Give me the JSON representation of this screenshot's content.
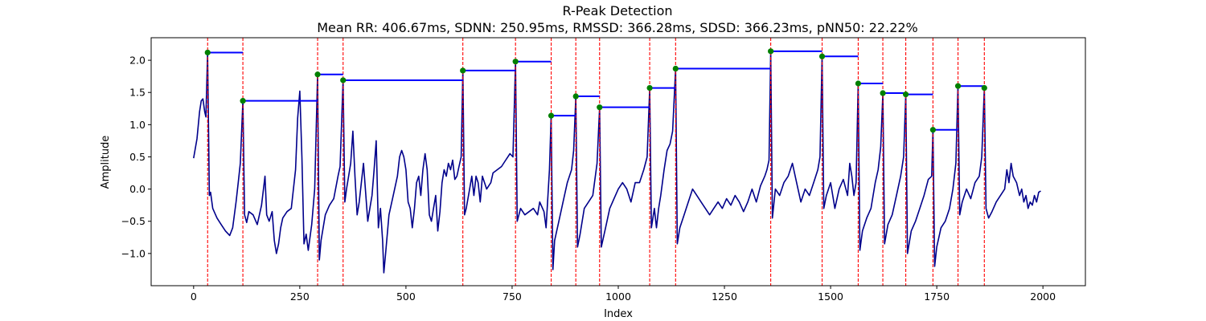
{
  "chart_data": {
    "type": "line",
    "title": "R-Peak Detection",
    "subtitle": "Mean RR: 406.67ms, SDNN: 250.95ms, RMSSD: 366.28ms, SDSD: 366.23ms, pNN50: 22.22%",
    "xlabel": "Index",
    "ylabel": "Amplitude",
    "xlim": [
      -100,
      2100
    ],
    "ylim": [
      -1.5,
      2.35
    ],
    "xticks": [
      0,
      250,
      500,
      750,
      1000,
      1250,
      1500,
      1750,
      2000
    ],
    "yticks": [
      -1.0,
      -0.5,
      0.0,
      0.5,
      1.0,
      1.5,
      2.0
    ],
    "xtick_labels": [
      "0",
      "250",
      "500",
      "750",
      "1000",
      "1250",
      "1500",
      "1750",
      "2000"
    ],
    "ytick_labels": [
      "−1.0",
      "−0.5",
      "0.0",
      "0.5",
      "1.0",
      "1.5",
      "2.0"
    ],
    "grid": false,
    "colors": {
      "signal": "#00008b",
      "peak_line": "#ff0000",
      "peak_marker": "#008000",
      "rr_interval": "#0000ff"
    },
    "signal_keypoints": [
      [
        0,
        0.48
      ],
      [
        8,
        0.78
      ],
      [
        14,
        1.2
      ],
      [
        18,
        1.37
      ],
      [
        22,
        1.4
      ],
      [
        26,
        1.2
      ],
      [
        29,
        1.12
      ],
      [
        33,
        2.12
      ],
      [
        37,
        -0.1
      ],
      [
        40,
        -0.05
      ],
      [
        45,
        -0.3
      ],
      [
        55,
        -0.45
      ],
      [
        65,
        -0.55
      ],
      [
        75,
        -0.65
      ],
      [
        85,
        -0.72
      ],
      [
        92,
        -0.6
      ],
      [
        100,
        -0.2
      ],
      [
        105,
        0.1
      ],
      [
        110,
        0.4
      ],
      [
        116,
        1.37
      ],
      [
        120,
        -0.4
      ],
      [
        125,
        -0.52
      ],
      [
        130,
        -0.35
      ],
      [
        140,
        -0.4
      ],
      [
        150,
        -0.55
      ],
      [
        160,
        -0.25
      ],
      [
        168,
        0.2
      ],
      [
        172,
        -0.4
      ],
      [
        178,
        -0.5
      ],
      [
        185,
        -0.35
      ],
      [
        190,
        -0.8
      ],
      [
        195,
        -1.0
      ],
      [
        200,
        -0.85
      ],
      [
        205,
        -0.6
      ],
      [
        210,
        -0.45
      ],
      [
        220,
        -0.35
      ],
      [
        230,
        -0.3
      ],
      [
        240,
        0.3
      ],
      [
        245,
        1.1
      ],
      [
        250,
        1.52
      ],
      [
        255,
        0.5
      ],
      [
        260,
        -0.85
      ],
      [
        265,
        -0.7
      ],
      [
        270,
        -0.95
      ],
      [
        278,
        -0.55
      ],
      [
        285,
        0.0
      ],
      [
        292,
        1.78
      ],
      [
        296,
        -1.1
      ],
      [
        300,
        -0.8
      ],
      [
        310,
        -0.4
      ],
      [
        320,
        -0.25
      ],
      [
        330,
        -0.15
      ],
      [
        340,
        0.2
      ],
      [
        345,
        0.35
      ],
      [
        352,
        1.69
      ],
      [
        356,
        -0.2
      ],
      [
        360,
        0.0
      ],
      [
        370,
        0.4
      ],
      [
        375,
        0.9
      ],
      [
        380,
        0.2
      ],
      [
        385,
        -0.4
      ],
      [
        390,
        -0.2
      ],
      [
        400,
        0.4
      ],
      [
        410,
        -0.5
      ],
      [
        415,
        -0.3
      ],
      [
        420,
        -0.1
      ],
      [
        425,
        0.3
      ],
      [
        430,
        0.75
      ],
      [
        435,
        -0.6
      ],
      [
        440,
        -0.3
      ],
      [
        445,
        -0.8
      ],
      [
        448,
        -1.3
      ],
      [
        452,
        -1.0
      ],
      [
        460,
        -0.4
      ],
      [
        470,
        -0.1
      ],
      [
        480,
        0.2
      ],
      [
        485,
        0.5
      ],
      [
        490,
        0.6
      ],
      [
        495,
        0.5
      ],
      [
        500,
        0.3
      ],
      [
        505,
        -0.2
      ],
      [
        510,
        -0.3
      ],
      [
        515,
        -0.6
      ],
      [
        520,
        -0.3
      ],
      [
        525,
        0.1
      ],
      [
        530,
        0.2
      ],
      [
        535,
        -0.1
      ],
      [
        540,
        0.3
      ],
      [
        545,
        0.55
      ],
      [
        550,
        0.3
      ],
      [
        555,
        -0.4
      ],
      [
        560,
        -0.5
      ],
      [
        565,
        -0.3
      ],
      [
        570,
        -0.1
      ],
      [
        575,
        -0.65
      ],
      [
        580,
        -0.35
      ],
      [
        585,
        0.1
      ],
      [
        590,
        0.3
      ],
      [
        595,
        0.2
      ],
      [
        600,
        0.4
      ],
      [
        605,
        0.3
      ],
      [
        610,
        0.45
      ],
      [
        615,
        0.15
      ],
      [
        620,
        0.2
      ],
      [
        625,
        0.35
      ],
      [
        630,
        0.5
      ],
      [
        634,
        1.84
      ],
      [
        638,
        -0.4
      ],
      [
        642,
        -0.3
      ],
      [
        650,
        0.0
      ],
      [
        655,
        0.2
      ],
      [
        660,
        -0.1
      ],
      [
        665,
        0.2
      ],
      [
        670,
        0.1
      ],
      [
        675,
        -0.2
      ],
      [
        680,
        0.2
      ],
      [
        690,
        0.0
      ],
      [
        700,
        0.1
      ],
      [
        705,
        0.25
      ],
      [
        715,
        0.3
      ],
      [
        725,
        0.35
      ],
      [
        735,
        0.45
      ],
      [
        745,
        0.55
      ],
      [
        752,
        0.5
      ],
      [
        758,
        1.98
      ],
      [
        762,
        -0.5
      ],
      [
        770,
        -0.3
      ],
      [
        780,
        -0.4
      ],
      [
        790,
        -0.35
      ],
      [
        800,
        -0.3
      ],
      [
        810,
        -0.4
      ],
      [
        815,
        -0.2
      ],
      [
        825,
        -0.35
      ],
      [
        830,
        -0.6
      ],
      [
        838,
        0.3
      ],
      [
        842,
        1.14
      ],
      [
        846,
        -1.25
      ],
      [
        850,
        -0.8
      ],
      [
        860,
        -0.5
      ],
      [
        870,
        -0.2
      ],
      [
        880,
        0.1
      ],
      [
        890,
        0.3
      ],
      [
        895,
        0.6
      ],
      [
        900,
        1.44
      ],
      [
        904,
        -0.9
      ],
      [
        910,
        -0.7
      ],
      [
        920,
        -0.3
      ],
      [
        930,
        -0.2
      ],
      [
        940,
        -0.1
      ],
      [
        950,
        0.4
      ],
      [
        956,
        1.27
      ],
      [
        960,
        -0.9
      ],
      [
        970,
        -0.6
      ],
      [
        980,
        -0.3
      ],
      [
        990,
        -0.15
      ],
      [
        1000,
        0.0
      ],
      [
        1010,
        0.1
      ],
      [
        1020,
        0.0
      ],
      [
        1030,
        -0.2
      ],
      [
        1040,
        0.1
      ],
      [
        1050,
        0.1
      ],
      [
        1060,
        0.3
      ],
      [
        1068,
        0.5
      ],
      [
        1074,
        1.57
      ],
      [
        1078,
        -0.6
      ],
      [
        1085,
        -0.3
      ],
      [
        1090,
        -0.6
      ],
      [
        1095,
        -0.3
      ],
      [
        1100,
        -0.1
      ],
      [
        1108,
        0.3
      ],
      [
        1115,
        0.6
      ],
      [
        1122,
        0.7
      ],
      [
        1128,
        0.9
      ],
      [
        1135,
        1.87
      ],
      [
        1139,
        -0.85
      ],
      [
        1145,
        -0.6
      ],
      [
        1155,
        -0.4
      ],
      [
        1165,
        -0.2
      ],
      [
        1175,
        0.0
      ],
      [
        1185,
        -0.1
      ],
      [
        1195,
        -0.2
      ],
      [
        1205,
        -0.3
      ],
      [
        1215,
        -0.4
      ],
      [
        1225,
        -0.3
      ],
      [
        1235,
        -0.2
      ],
      [
        1245,
        -0.3
      ],
      [
        1255,
        -0.15
      ],
      [
        1265,
        -0.25
      ],
      [
        1275,
        -0.1
      ],
      [
        1285,
        -0.2
      ],
      [
        1295,
        -0.35
      ],
      [
        1305,
        -0.2
      ],
      [
        1315,
        0.0
      ],
      [
        1325,
        -0.2
      ],
      [
        1335,
        0.05
      ],
      [
        1345,
        0.2
      ],
      [
        1350,
        0.3
      ],
      [
        1355,
        0.45
      ],
      [
        1359,
        2.14
      ],
      [
        1363,
        -0.45
      ],
      [
        1370,
        0.0
      ],
      [
        1380,
        -0.1
      ],
      [
        1390,
        0.1
      ],
      [
        1400,
        0.2
      ],
      [
        1410,
        0.4
      ],
      [
        1420,
        0.1
      ],
      [
        1430,
        -0.2
      ],
      [
        1440,
        0.0
      ],
      [
        1450,
        -0.1
      ],
      [
        1460,
        0.1
      ],
      [
        1470,
        0.3
      ],
      [
        1475,
        0.5
      ],
      [
        1480,
        2.06
      ],
      [
        1484,
        -0.3
      ],
      [
        1490,
        -0.1
      ],
      [
        1500,
        0.1
      ],
      [
        1510,
        -0.3
      ],
      [
        1520,
        0.0
      ],
      [
        1530,
        0.15
      ],
      [
        1540,
        -0.1
      ],
      [
        1545,
        0.4
      ],
      [
        1550,
        0.2
      ],
      [
        1555,
        -0.1
      ],
      [
        1560,
        0.1
      ],
      [
        1565,
        1.64
      ],
      [
        1569,
        -0.95
      ],
      [
        1575,
        -0.65
      ],
      [
        1585,
        -0.45
      ],
      [
        1595,
        -0.3
      ],
      [
        1605,
        0.1
      ],
      [
        1612,
        0.3
      ],
      [
        1618,
        0.65
      ],
      [
        1623,
        1.49
      ],
      [
        1627,
        -0.85
      ],
      [
        1635,
        -0.55
      ],
      [
        1645,
        -0.4
      ],
      [
        1655,
        -0.1
      ],
      [
        1665,
        0.2
      ],
      [
        1672,
        0.5
      ],
      [
        1677,
        1.47
      ],
      [
        1681,
        -1.0
      ],
      [
        1690,
        -0.65
      ],
      [
        1700,
        -0.5
      ],
      [
        1710,
        -0.3
      ],
      [
        1720,
        -0.1
      ],
      [
        1730,
        0.15
      ],
      [
        1738,
        0.2
      ],
      [
        1741,
        0.92
      ],
      [
        1745,
        -1.2
      ],
      [
        1750,
        -0.9
      ],
      [
        1760,
        -0.6
      ],
      [
        1770,
        -0.5
      ],
      [
        1780,
        -0.3
      ],
      [
        1788,
        0.0
      ],
      [
        1795,
        0.4
      ],
      [
        1800,
        1.6
      ],
      [
        1804,
        -0.4
      ],
      [
        1810,
        -0.2
      ],
      [
        1820,
        0.0
      ],
      [
        1830,
        -0.15
      ],
      [
        1840,
        0.1
      ],
      [
        1850,
        0.2
      ],
      [
        1856,
        0.5
      ],
      [
        1862,
        1.57
      ],
      [
        1866,
        -0.3
      ],
      [
        1872,
        -0.45
      ],
      [
        1880,
        -0.35
      ],
      [
        1890,
        -0.2
      ],
      [
        1900,
        -0.1
      ],
      [
        1910,
        0.0
      ],
      [
        1915,
        0.3
      ],
      [
        1920,
        0.1
      ],
      [
        1925,
        0.4
      ],
      [
        1930,
        0.2
      ],
      [
        1938,
        0.1
      ],
      [
        1945,
        -0.1
      ],
      [
        1950,
        0.0
      ],
      [
        1955,
        -0.2
      ],
      [
        1960,
        -0.1
      ],
      [
        1965,
        -0.3
      ],
      [
        1970,
        -0.2
      ],
      [
        1975,
        -0.25
      ],
      [
        1980,
        -0.1
      ],
      [
        1985,
        -0.2
      ],
      [
        1990,
        -0.05
      ],
      [
        1995,
        -0.03
      ]
    ],
    "r_peaks": [
      {
        "x": 33,
        "y": 2.12
      },
      {
        "x": 116,
        "y": 1.37
      },
      {
        "x": 292,
        "y": 1.78
      },
      {
        "x": 352,
        "y": 1.69
      },
      {
        "x": 634,
        "y": 1.84
      },
      {
        "x": 758,
        "y": 1.98
      },
      {
        "x": 842,
        "y": 1.14
      },
      {
        "x": 900,
        "y": 1.44
      },
      {
        "x": 956,
        "y": 1.27
      },
      {
        "x": 1074,
        "y": 1.57
      },
      {
        "x": 1135,
        "y": 1.87
      },
      {
        "x": 1359,
        "y": 2.14
      },
      {
        "x": 1480,
        "y": 2.06
      },
      {
        "x": 1565,
        "y": 1.64
      },
      {
        "x": 1623,
        "y": 1.49
      },
      {
        "x": 1677,
        "y": 1.47
      },
      {
        "x": 1741,
        "y": 0.92
      },
      {
        "x": 1800,
        "y": 1.6
      },
      {
        "x": 1862,
        "y": 1.57
      }
    ]
  }
}
